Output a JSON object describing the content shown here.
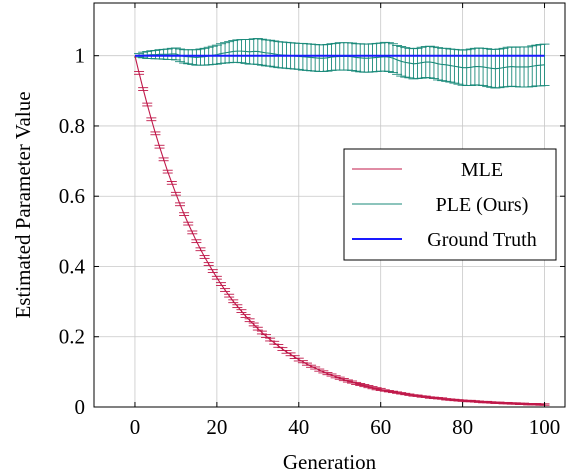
{
  "chart_data": {
    "type": "line",
    "title": "",
    "xlabel": "Generation",
    "ylabel": "Estimated Parameter Value",
    "xlim": [
      -10,
      105
    ],
    "ylim": [
      0,
      1.15
    ],
    "xticks": [
      0,
      20,
      40,
      60,
      80,
      100
    ],
    "yticks": [
      0,
      0.2,
      0.4,
      0.6,
      0.8,
      1
    ],
    "xtick_labels": [
      "0",
      "20",
      "40",
      "60",
      "80",
      "100"
    ],
    "ytick_labels": [
      "0",
      "0.2",
      "0.4",
      "0.6",
      "0.8",
      "1"
    ],
    "grid": true,
    "legend_position": "center-right",
    "series": [
      {
        "name": "MLE",
        "color": "#c0194a",
        "error_bars": true,
        "x": [
          0,
          1,
          2,
          3,
          4,
          5,
          6,
          7,
          8,
          9,
          10,
          11,
          12,
          13,
          14,
          15,
          16,
          17,
          18,
          19,
          20,
          21,
          22,
          23,
          24,
          25,
          26,
          27,
          28,
          29,
          30,
          31,
          32,
          33,
          34,
          35,
          36,
          37,
          38,
          39,
          40,
          41,
          42,
          43,
          44,
          45,
          46,
          47,
          48,
          49,
          50,
          51,
          52,
          53,
          54,
          55,
          56,
          57,
          58,
          59,
          60,
          61,
          62,
          63,
          64,
          65,
          66,
          67,
          68,
          69,
          70,
          71,
          72,
          73,
          74,
          75,
          76,
          77,
          78,
          79,
          80,
          81,
          82,
          83,
          84,
          85,
          86,
          87,
          88,
          89,
          90,
          91,
          92,
          93,
          94,
          95,
          96,
          97,
          98,
          99,
          100
        ],
        "values": [
          1.0,
          0.951,
          0.905,
          0.861,
          0.819,
          0.779,
          0.741,
          0.705,
          0.67,
          0.638,
          0.607,
          0.577,
          0.549,
          0.522,
          0.497,
          0.472,
          0.449,
          0.427,
          0.407,
          0.387,
          0.368,
          0.35,
          0.333,
          0.317,
          0.301,
          0.287,
          0.273,
          0.259,
          0.247,
          0.235,
          0.223,
          0.212,
          0.202,
          0.192,
          0.183,
          0.174,
          0.165,
          0.157,
          0.15,
          0.142,
          0.135,
          0.129,
          0.122,
          0.116,
          0.111,
          0.105,
          0.1,
          0.095,
          0.091,
          0.086,
          0.082,
          0.078,
          0.074,
          0.071,
          0.067,
          0.064,
          0.061,
          0.058,
          0.055,
          0.052,
          0.05,
          0.047,
          0.045,
          0.043,
          0.041,
          0.039,
          0.037,
          0.035,
          0.033,
          0.032,
          0.03,
          0.029,
          0.027,
          0.026,
          0.025,
          0.024,
          0.022,
          0.021,
          0.02,
          0.019,
          0.018,
          0.017,
          0.017,
          0.016,
          0.015,
          0.014,
          0.014,
          0.013,
          0.012,
          0.012,
          0.011,
          0.011,
          0.01,
          0.01,
          0.009,
          0.009,
          0.008,
          0.008,
          0.008,
          0.007,
          0.007
        ],
        "errors": [
          0.0,
          0.004,
          0.004,
          0.004,
          0.004,
          0.004,
          0.004,
          0.004,
          0.004,
          0.004,
          0.004,
          0.004,
          0.004,
          0.004,
          0.004,
          0.004,
          0.004,
          0.004,
          0.004,
          0.004,
          0.004,
          0.004,
          0.004,
          0.004,
          0.004,
          0.004,
          0.004,
          0.004,
          0.004,
          0.004,
          0.004,
          0.004,
          0.004,
          0.004,
          0.004,
          0.004,
          0.004,
          0.004,
          0.004,
          0.004,
          0.004,
          0.003,
          0.003,
          0.003,
          0.003,
          0.003,
          0.003,
          0.003,
          0.003,
          0.003,
          0.003,
          0.003,
          0.003,
          0.003,
          0.003,
          0.003,
          0.003,
          0.003,
          0.003,
          0.003,
          0.003,
          0.002,
          0.002,
          0.002,
          0.002,
          0.002,
          0.002,
          0.002,
          0.002,
          0.002,
          0.002,
          0.002,
          0.002,
          0.002,
          0.002,
          0.002,
          0.002,
          0.002,
          0.002,
          0.002,
          0.002,
          0.002,
          0.002,
          0.002,
          0.002,
          0.002,
          0.002,
          0.002,
          0.002,
          0.002,
          0.002,
          0.002,
          0.002,
          0.002,
          0.002,
          0.002,
          0.002,
          0.002,
          0.002,
          0.002,
          0.002
        ]
      },
      {
        "name": "PLE (Ours)",
        "color": "#1a8a7a",
        "error_bars": true,
        "x": [
          0,
          1,
          2,
          3,
          4,
          5,
          6,
          7,
          8,
          9,
          10,
          11,
          12,
          13,
          14,
          15,
          16,
          17,
          18,
          19,
          20,
          21,
          22,
          23,
          24,
          25,
          26,
          27,
          28,
          29,
          30,
          31,
          32,
          33,
          34,
          35,
          36,
          37,
          38,
          39,
          40,
          41,
          42,
          43,
          44,
          45,
          46,
          47,
          48,
          49,
          50,
          51,
          52,
          53,
          54,
          55,
          56,
          57,
          58,
          59,
          60,
          61,
          62,
          63,
          64,
          65,
          66,
          67,
          68,
          69,
          70,
          71,
          72,
          73,
          74,
          75,
          76,
          77,
          78,
          79,
          80,
          81,
          82,
          83,
          84,
          85,
          86,
          87,
          88,
          89,
          90,
          91,
          92,
          93,
          94,
          95,
          96,
          97,
          98,
          99,
          100
        ],
        "values": [
          1.0,
          1.001,
          1.002,
          1.002,
          1.003,
          1.003,
          1.004,
          1.004,
          1.004,
          1.005,
          1.005,
          1.001,
          0.998,
          0.997,
          0.996,
          0.995,
          0.996,
          0.997,
          0.999,
          1.001,
          1.003,
          1.006,
          1.008,
          1.01,
          1.012,
          1.013,
          1.013,
          1.012,
          1.011,
          1.012,
          1.012,
          1.01,
          1.008,
          1.007,
          1.005,
          1.003,
          1.002,
          1.001,
          1.0,
          0.999,
          0.998,
          0.997,
          0.996,
          0.995,
          0.994,
          0.993,
          0.993,
          0.994,
          0.996,
          0.997,
          0.998,
          0.998,
          0.998,
          0.997,
          0.995,
          0.994,
          0.993,
          0.993,
          0.994,
          0.995,
          0.996,
          0.997,
          0.996,
          0.993,
          0.988,
          0.984,
          0.981,
          0.979,
          0.977,
          0.978,
          0.98,
          0.982,
          0.982,
          0.98,
          0.977,
          0.975,
          0.974,
          0.972,
          0.97,
          0.968,
          0.966,
          0.966,
          0.967,
          0.969,
          0.969,
          0.968,
          0.966,
          0.964,
          0.963,
          0.964,
          0.966,
          0.968,
          0.969,
          0.968,
          0.968,
          0.968,
          0.968,
          0.97,
          0.972,
          0.973,
          0.974
        ],
        "errors": [
          0.0,
          0.005,
          0.008,
          0.01,
          0.011,
          0.012,
          0.013,
          0.014,
          0.015,
          0.016,
          0.017,
          0.018,
          0.019,
          0.02,
          0.021,
          0.022,
          0.023,
          0.024,
          0.025,
          0.026,
          0.027,
          0.028,
          0.029,
          0.03,
          0.031,
          0.032,
          0.033,
          0.034,
          0.035,
          0.036,
          0.037,
          0.037,
          0.037,
          0.037,
          0.037,
          0.037,
          0.037,
          0.037,
          0.037,
          0.037,
          0.037,
          0.038,
          0.038,
          0.038,
          0.038,
          0.038,
          0.038,
          0.038,
          0.038,
          0.038,
          0.039,
          0.039,
          0.039,
          0.039,
          0.039,
          0.04,
          0.04,
          0.04,
          0.04,
          0.04,
          0.04,
          0.041,
          0.041,
          0.041,
          0.041,
          0.042,
          0.042,
          0.042,
          0.043,
          0.043,
          0.044,
          0.044,
          0.045,
          0.045,
          0.046,
          0.046,
          0.047,
          0.047,
          0.048,
          0.049,
          0.05,
          0.051,
          0.052,
          0.052,
          0.053,
          0.053,
          0.054,
          0.054,
          0.055,
          0.055,
          0.055,
          0.056,
          0.056,
          0.056,
          0.057,
          0.057,
          0.057,
          0.058,
          0.058,
          0.059,
          0.059
        ]
      },
      {
        "name": "Ground Truth",
        "color": "#1a1aff",
        "error_bars": false,
        "x": [
          0,
          100
        ],
        "values": [
          1.0,
          1.0
        ]
      }
    ]
  }
}
